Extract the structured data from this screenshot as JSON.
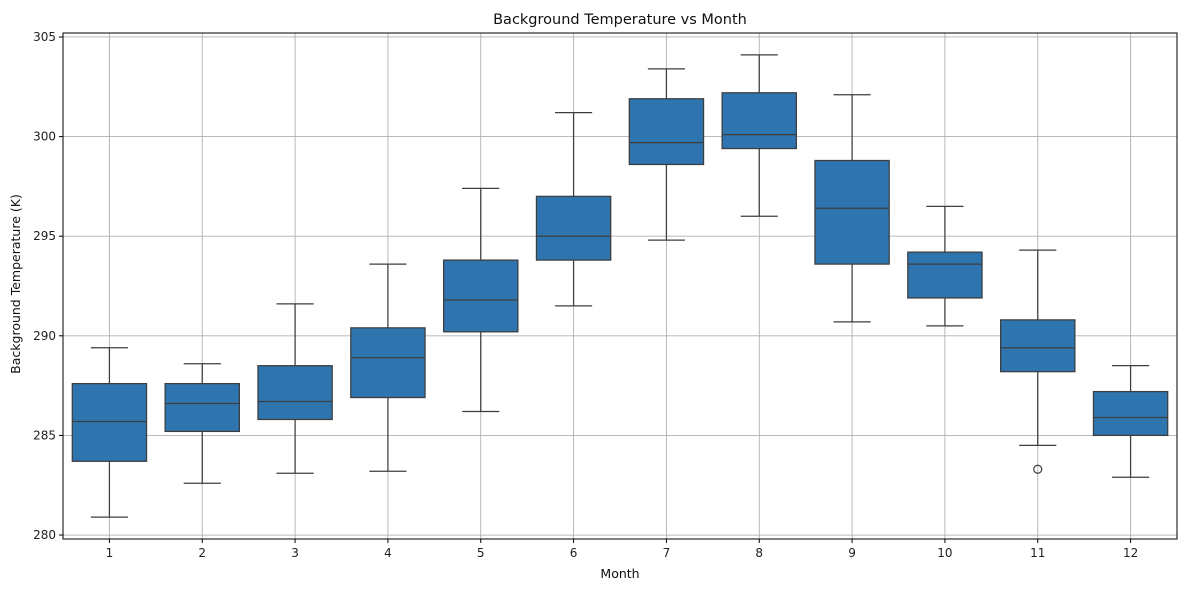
{
  "chart_data": {
    "type": "box",
    "title": "Background Temperature vs Month",
    "xlabel": "Month",
    "ylabel": "Background Temperature (K)",
    "categories": [
      "1",
      "2",
      "3",
      "4",
      "5",
      "6",
      "7",
      "8",
      "9",
      "10",
      "11",
      "12"
    ],
    "ylim": [
      279.8,
      305.2
    ],
    "yticks": [
      280,
      285,
      290,
      295,
      300,
      305
    ],
    "grid": true,
    "colors": {
      "box_fill": "#2e75b0",
      "line": "#3d3d3d",
      "grid": "#b0b0b0"
    },
    "boxes": [
      {
        "whisker_low": 280.9,
        "q1": 283.7,
        "median": 285.7,
        "q3": 287.6,
        "whisker_high": 289.4,
        "outliers": []
      },
      {
        "whisker_low": 282.6,
        "q1": 285.2,
        "median": 286.6,
        "q3": 287.6,
        "whisker_high": 288.6,
        "outliers": []
      },
      {
        "whisker_low": 283.1,
        "q1": 285.8,
        "median": 286.7,
        "q3": 288.5,
        "whisker_high": 291.6,
        "outliers": []
      },
      {
        "whisker_low": 283.2,
        "q1": 286.9,
        "median": 288.9,
        "q3": 290.4,
        "whisker_high": 293.6,
        "outliers": []
      },
      {
        "whisker_low": 286.2,
        "q1": 290.2,
        "median": 291.8,
        "q3": 293.8,
        "whisker_high": 297.4,
        "outliers": []
      },
      {
        "whisker_low": 291.5,
        "q1": 293.8,
        "median": 295.0,
        "q3": 297.0,
        "whisker_high": 301.2,
        "outliers": []
      },
      {
        "whisker_low": 294.8,
        "q1": 298.6,
        "median": 299.7,
        "q3": 301.9,
        "whisker_high": 303.4,
        "outliers": []
      },
      {
        "whisker_low": 296.0,
        "q1": 299.4,
        "median": 300.1,
        "q3": 302.2,
        "whisker_high": 304.1,
        "outliers": []
      },
      {
        "whisker_low": 290.7,
        "q1": 293.6,
        "median": 296.4,
        "q3": 298.8,
        "whisker_high": 302.1,
        "outliers": []
      },
      {
        "whisker_low": 290.5,
        "q1": 291.9,
        "median": 293.6,
        "q3": 294.2,
        "whisker_high": 296.5,
        "outliers": []
      },
      {
        "whisker_low": 284.5,
        "q1": 288.2,
        "median": 289.4,
        "q3": 290.8,
        "whisker_high": 294.3,
        "outliers": [
          283.3
        ]
      },
      {
        "whisker_low": 282.9,
        "q1": 285.0,
        "median": 285.9,
        "q3": 287.2,
        "whisker_high": 288.5,
        "outliers": []
      }
    ]
  }
}
